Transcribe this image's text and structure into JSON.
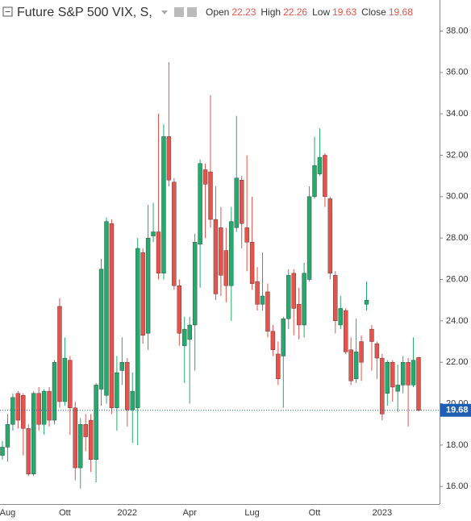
{
  "chart_data": {
    "type": "candlestick",
    "title": "Future S&P 500 VIX, S,",
    "legend_labels": [
      "Open",
      "High",
      "Low",
      "Close"
    ],
    "up_color": "#22ab6c",
    "down_color": "#e5534b",
    "price_line_color": "#1e5fb4",
    "categories": [
      null,
      "Aug",
      null,
      null,
      null,
      null,
      null,
      null,
      null,
      null,
      null,
      null,
      "Ott",
      null,
      null,
      null,
      null,
      null,
      null,
      null,
      null,
      null,
      null,
      null,
      "2022",
      null,
      null,
      null,
      null,
      null,
      null,
      null,
      null,
      null,
      null,
      null,
      "Apr",
      null,
      null,
      null,
      null,
      null,
      null,
      null,
      null,
      null,
      null,
      null,
      "Lug",
      null,
      null,
      null,
      null,
      null,
      null,
      null,
      null,
      null,
      null,
      null,
      "Ott",
      null,
      null,
      null,
      null,
      null,
      null,
      null,
      null,
      null,
      null,
      null,
      null,
      "2023",
      null,
      null,
      null,
      null,
      null,
      null,
      null
    ],
    "open": [
      17.5,
      17.9,
      19.0,
      20.5,
      20.4,
      18.8,
      16.6,
      20.5,
      19.0,
      20.6,
      19.2,
      24.7,
      20.1,
      22.1,
      19.8,
      16.9,
      19.0,
      19.2,
      17.3,
      20.7,
      20.4,
      28.7,
      19.8,
      21.6,
      22.0,
      19.7,
      19.8,
      27.3,
      23.4,
      28.1,
      28.3,
      26.3,
      32.9,
      30.7,
      25.7,
      22.8,
      23.1,
      23.8,
      27.7,
      31.3,
      31.2,
      28.9,
      28.5,
      27.4,
      25.7,
      28.5,
      30.8,
      28.5,
      27.8,
      25.9,
      24.8,
      25.4,
      23.5,
      22.4,
      22.3,
      24.1,
      26.3,
      24.8,
      23.8,
      26.0,
      30.0,
      31.1,
      32.0,
      29.9,
      26.2,
      23.8,
      24.5,
      22.6,
      21.2,
      23.0,
      24.8,
      23.6,
      22.9,
      22.2,
      20.5,
      22.0,
      20.6,
      20.9,
      22.0,
      20.9,
      22.23
    ],
    "high": [
      18.2,
      19.5,
      20.5,
      20.6,
      20.5,
      19.0,
      20.6,
      20.8,
      20.7,
      20.8,
      22.1,
      25.1,
      23.2,
      22.3,
      20.1,
      19.3,
      19.5,
      19.5,
      21.0,
      27.0,
      29.0,
      28.9,
      22.3,
      23.2,
      22.2,
      21.5,
      28.0,
      27.5,
      29.6,
      29.7,
      34.0,
      33.5,
      36.5,
      30.9,
      26.0,
      24.2,
      24.2,
      28.2,
      31.8,
      31.6,
      34.9,
      30.5,
      29.5,
      28.5,
      29.5,
      33.9,
      31.0,
      32.0,
      30.0,
      26.6,
      27.3,
      25.8,
      23.8,
      23.0,
      24.2,
      26.5,
      26.5,
      25.6,
      26.8,
      30.5,
      32.9,
      33.3,
      32.1,
      30.0,
      26.4,
      25.2,
      24.6,
      23.2,
      24.1,
      23.3,
      25.9,
      23.8,
      23.0,
      22.4,
      22.1,
      22.1,
      21.9,
      22.3,
      22.2,
      23.2,
      22.26
    ],
    "low": [
      17.3,
      17.2,
      18.7,
      18.8,
      17.5,
      16.5,
      16.5,
      18.7,
      18.5,
      18.9,
      19.0,
      19.8,
      19.9,
      18.5,
      16.3,
      15.9,
      17.7,
      16.7,
      16.2,
      19.9,
      20.0,
      19.5,
      18.7,
      20.9,
      18.9,
      18.1,
      18.0,
      22.9,
      22.6,
      27.8,
      26.0,
      26.0,
      30.5,
      25.5,
      22.8,
      21.0,
      20.0,
      21.6,
      25.6,
      28.0,
      28.5,
      25.0,
      25.2,
      24.9,
      24.0,
      28.3,
      27.5,
      26.4,
      25.5,
      24.5,
      24.5,
      23.2,
      22.3,
      20.9,
      19.8,
      23.6,
      23.3,
      23.1,
      23.2,
      25.9,
      29.9,
      31.0,
      29.5,
      26.0,
      23.4,
      23.6,
      22.4,
      20.9,
      21.0,
      21.1,
      24.5,
      21.6,
      21.2,
      19.2,
      19.9,
      20.1,
      19.6,
      20.5,
      18.9,
      20.8,
      19.63
    ],
    "close": [
      17.9,
      19.0,
      20.3,
      19.2,
      18.8,
      16.6,
      20.5,
      19.0,
      20.6,
      19.2,
      22.0,
      20.1,
      22.2,
      19.8,
      16.9,
      19.0,
      18.4,
      17.3,
      20.9,
      26.5,
      28.8,
      19.8,
      21.5,
      22.0,
      19.7,
      20.6,
      27.5,
      23.3,
      28.0,
      28.3,
      26.3,
      32.9,
      30.8,
      25.7,
      23.4,
      23.6,
      23.8,
      27.8,
      31.6,
      30.6,
      28.9,
      25.3,
      26.2,
      25.7,
      28.8,
      30.9,
      28.7,
      27.8,
      25.8,
      24.8,
      25.2,
      23.5,
      22.6,
      21.2,
      24.1,
      26.2,
      24.6,
      23.8,
      26.3,
      30.0,
      31.5,
      31.9,
      30.0,
      26.3,
      24.0,
      24.6,
      22.5,
      21.1,
      22.5,
      22.0,
      25.0,
      23.0,
      22.2,
      19.5,
      22.0,
      20.8,
      20.9,
      22.0,
      20.9,
      22.1,
      19.68
    ],
    "ylim": [
      15.15,
      39.5
    ],
    "yticks": [
      {
        "value": 16,
        "label": "16.00"
      },
      {
        "value": 18,
        "label": "18.00"
      },
      {
        "value": 20,
        "label": "20.00"
      },
      {
        "value": 22,
        "label": "22.00"
      },
      {
        "value": 24,
        "label": "24.00"
      },
      {
        "value": 26,
        "label": "26.00"
      },
      {
        "value": 28,
        "label": "28.00"
      },
      {
        "value": 30,
        "label": "30.00"
      },
      {
        "value": 32,
        "label": "32.00"
      },
      {
        "value": 34,
        "label": "34.00"
      },
      {
        "value": 36,
        "label": "36.00"
      },
      {
        "value": 38,
        "label": "38.00"
      }
    ]
  }
}
